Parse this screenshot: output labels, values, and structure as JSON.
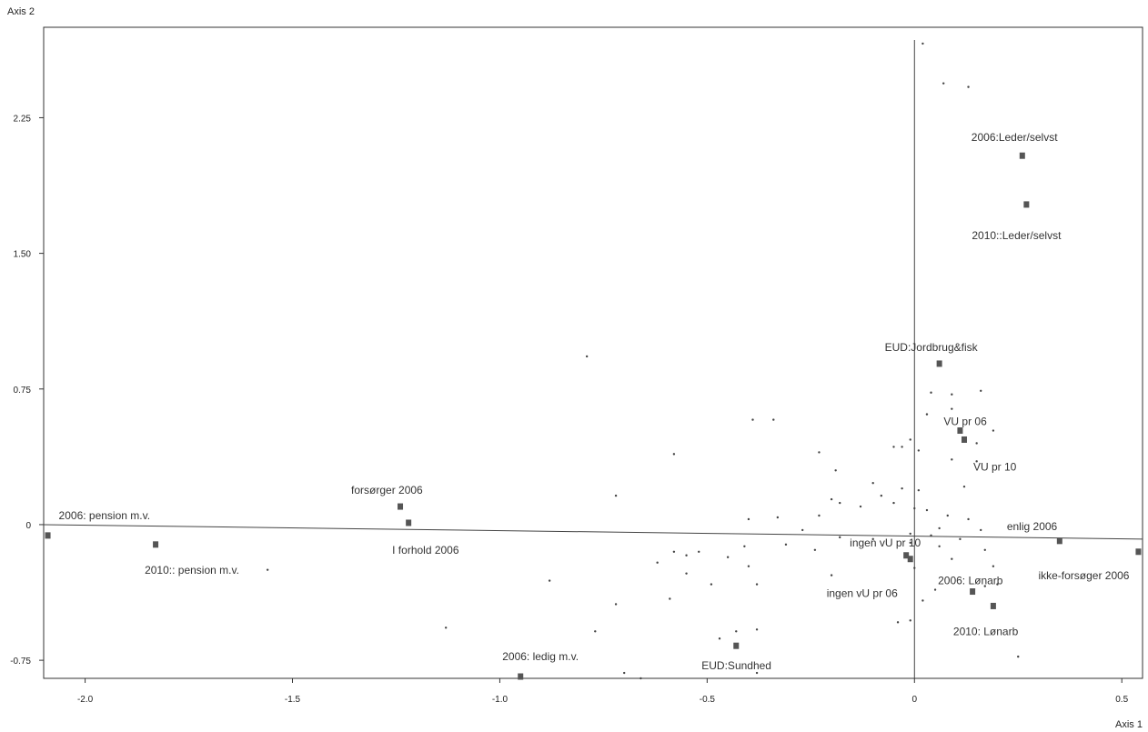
{
  "chart_data": {
    "type": "scatter",
    "title": "",
    "xlabel": "Axis 1",
    "ylabel": "Axis 2",
    "xlim": [
      -2.1,
      0.55
    ],
    "ylim": [
      -0.85,
      2.75
    ],
    "x_ticks": [
      "-2.0",
      "-1.5",
      "-1.0",
      "-0.5",
      "0",
      "0.5"
    ],
    "x_tick_values": [
      -2.0,
      -1.5,
      -1.0,
      -0.5,
      0,
      0.5
    ],
    "y_ticks": [
      "2.25",
      "1.50",
      "0.75",
      "0",
      "-0.75"
    ],
    "y_tick_values": [
      2.25,
      1.5,
      0.75,
      0,
      -0.75
    ],
    "grid": false,
    "legend": "none",
    "labeled_points": [
      {
        "label": "2006:Leder/selvst",
        "x": 0.26,
        "y": 2.04
      },
      {
        "label": "2010::Leder/selvst",
        "x": 0.27,
        "y": 1.77
      },
      {
        "label": "EUD:Jordbrug&fisk",
        "x": 0.06,
        "y": 0.89
      },
      {
        "label": "VU pr 06",
        "x": 0.11,
        "y": 0.52
      },
      {
        "label": "VU pr 10",
        "x": 0.12,
        "y": 0.47
      },
      {
        "label": "forsørger 2006",
        "x": -1.24,
        "y": 0.1
      },
      {
        "label": "I forhold 2006",
        "x": -1.22,
        "y": 0.01
      },
      {
        "label": "2006: pension m.v.",
        "x": -2.09,
        "y": -0.06
      },
      {
        "label": "2010:: pension m.v.",
        "x": -1.83,
        "y": -0.11
      },
      {
        "label": "enlig 2006",
        "x": 0.35,
        "y": -0.09
      },
      {
        "label": "ikke-forsøger 2006",
        "x": 0.54,
        "y": -0.15
      },
      {
        "label": "ingen vU pr 10",
        "x": -0.02,
        "y": -0.17
      },
      {
        "label": "ingen vU pr 06",
        "x": -0.01,
        "y": -0.19
      },
      {
        "label": "2006: Lønarb",
        "x": 0.14,
        "y": -0.37
      },
      {
        "label": "2010: Lønarb",
        "x": 0.19,
        "y": -0.45
      },
      {
        "label": "EUD:Sundhed",
        "x": -0.43,
        "y": -0.67
      },
      {
        "label": "2006: ledig m.v.",
        "x": -0.95,
        "y": -0.84
      }
    ],
    "minor_points": [
      [
        0.02,
        2.66
      ],
      [
        0.07,
        2.44
      ],
      [
        0.13,
        2.42
      ],
      [
        -0.79,
        0.93
      ],
      [
        0.04,
        0.73
      ],
      [
        0.09,
        0.72
      ],
      [
        0.16,
        0.74
      ],
      [
        0.09,
        0.64
      ],
      [
        0.03,
        0.61
      ],
      [
        -0.39,
        0.58
      ],
      [
        -0.34,
        0.58
      ],
      [
        0.19,
        0.52
      ],
      [
        0.15,
        0.45
      ],
      [
        -0.01,
        0.47
      ],
      [
        -0.05,
        0.43
      ],
      [
        -0.03,
        0.43
      ],
      [
        0.01,
        0.41
      ],
      [
        -0.58,
        0.39
      ],
      [
        -0.23,
        0.4
      ],
      [
        0.09,
        0.36
      ],
      [
        0.15,
        0.35
      ],
      [
        -0.19,
        0.3
      ],
      [
        -0.1,
        0.23
      ],
      [
        0.12,
        0.21
      ],
      [
        -0.72,
        0.16
      ],
      [
        -0.03,
        0.2
      ],
      [
        0.01,
        0.19
      ],
      [
        -0.08,
        0.16
      ],
      [
        -0.2,
        0.14
      ],
      [
        -0.18,
        0.12
      ],
      [
        0.0,
        0.09
      ],
      [
        0.03,
        0.08
      ],
      [
        -0.13,
        0.1
      ],
      [
        -0.05,
        0.12
      ],
      [
        0.08,
        0.05
      ],
      [
        -0.23,
        0.05
      ],
      [
        -0.33,
        0.04
      ],
      [
        -0.4,
        0.03
      ],
      [
        0.13,
        0.03
      ],
      [
        0.06,
        -0.02
      ],
      [
        -0.27,
        -0.03
      ],
      [
        0.16,
        -0.03
      ],
      [
        -0.01,
        -0.05
      ],
      [
        0.04,
        -0.06
      ],
      [
        -0.18,
        -0.07
      ],
      [
        -0.1,
        -0.08
      ],
      [
        0.11,
        -0.08
      ],
      [
        -0.01,
        -0.1
      ],
      [
        -0.31,
        -0.11
      ],
      [
        -0.41,
        -0.12
      ],
      [
        0.06,
        -0.12
      ],
      [
        0.17,
        -0.14
      ],
      [
        -0.52,
        -0.15
      ],
      [
        -0.24,
        -0.14
      ],
      [
        -0.58,
        -0.15
      ],
      [
        -0.55,
        -0.17
      ],
      [
        -0.45,
        -0.18
      ],
      [
        0.09,
        -0.19
      ],
      [
        0.19,
        -0.23
      ],
      [
        -0.62,
        -0.21
      ],
      [
        -0.4,
        -0.23
      ],
      [
        0.0,
        -0.24
      ],
      [
        -0.55,
        -0.27
      ],
      [
        -1.56,
        -0.25
      ],
      [
        -0.2,
        -0.28
      ],
      [
        -0.38,
        -0.33
      ],
      [
        -0.88,
        -0.31
      ],
      [
        -0.49,
        -0.33
      ],
      [
        0.2,
        -0.33
      ],
      [
        0.17,
        -0.34
      ],
      [
        0.05,
        -0.36
      ],
      [
        0.02,
        -0.42
      ],
      [
        -0.59,
        -0.41
      ],
      [
        -0.72,
        -0.44
      ],
      [
        -1.13,
        -0.57
      ],
      [
        -0.01,
        -0.53
      ],
      [
        -0.04,
        -0.54
      ],
      [
        -0.77,
        -0.59
      ],
      [
        -0.43,
        -0.59
      ],
      [
        -0.38,
        -0.58
      ],
      [
        -0.47,
        -0.63
      ],
      [
        0.25,
        -0.73
      ],
      [
        -0.38,
        -0.82
      ],
      [
        -0.7,
        -0.82
      ],
      [
        -0.66,
        -0.85
      ]
    ]
  }
}
